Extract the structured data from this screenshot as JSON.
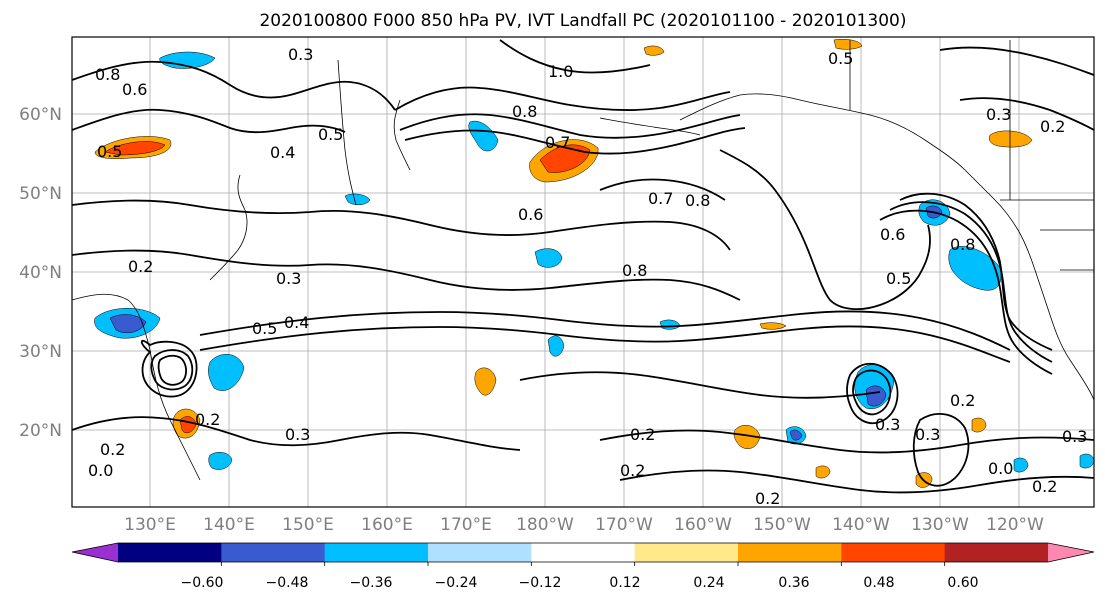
{
  "title": "2020100800 F000 850 hPa PV, IVT Landfall PC (2020101100 - 2020101300)",
  "map": {
    "lat_labels": [
      "60°N",
      "50°N",
      "40°N",
      "30°N",
      "20°N"
    ],
    "lon_labels": [
      "130°E",
      "140°E",
      "150°E",
      "160°E",
      "170°E",
      "180°W",
      "170°W",
      "160°W",
      "150°W",
      "140°W",
      "130°W",
      "120°W"
    ],
    "contour_labels": [
      "0.8",
      "0.6",
      "0.3",
      "0.5",
      "0.5",
      "0.4",
      "1.0",
      "0.8",
      "0.7",
      "0.5",
      "0.3",
      "0.2",
      "0.6",
      "0.7",
      "0.8",
      "0.6",
      "0.5",
      "0.8",
      "0.3",
      "0.5",
      "0.4",
      "0.2",
      "0.2",
      "0.3",
      "0.2",
      "0.2",
      "0.3",
      "0.3",
      "0.2",
      "0.3",
      "0.2",
      "0.2",
      "0.0",
      "0.2",
      "0.0",
      "0.8"
    ]
  },
  "colorbar": {
    "tick_labels": [
      "−0.60",
      "−0.48",
      "−0.36",
      "−0.24",
      "−0.12",
      "0.12",
      "0.24",
      "0.36",
      "0.48",
      "0.60"
    ],
    "colors": [
      "#9b30d0",
      "#000080",
      "#3a5bd0",
      "#00bfff",
      "#b0e0ff",
      "#ffffff",
      "#ffe98a",
      "#ffa500",
      "#ff4500",
      "#b22222",
      "#ff88b0"
    ]
  }
}
